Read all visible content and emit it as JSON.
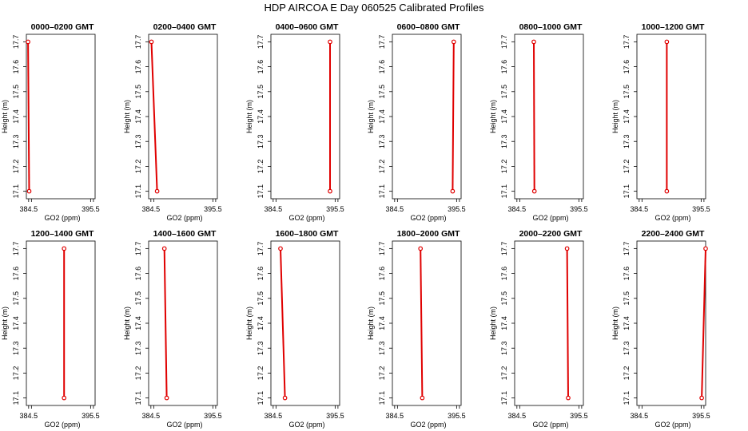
{
  "figure": {
    "title": "HDP  AIRCOA E  Day 060525  Calibrated Profiles"
  },
  "colors": {
    "series": "#e00000",
    "axis": "#000000"
  },
  "chart_data": [
    {
      "type": "line",
      "title": "0000–0200 GMT",
      "xlabel": "GO2 (ppm)",
      "ylabel": "Height (m)",
      "xlim": [
        384.1,
        396.3
      ],
      "ylim": [
        17.07,
        17.73
      ],
      "xticks": [
        384.5,
        395.5
      ],
      "yticks": [
        17.1,
        17.2,
        17.3,
        17.4,
        17.5,
        17.6,
        17.7
      ],
      "series": [
        {
          "name": "profile",
          "x": [
            384.4,
            384.6
          ],
          "y": [
            17.7,
            17.1
          ]
        }
      ]
    },
    {
      "type": "line",
      "title": "0200–0400 GMT",
      "xlabel": "GO2 (ppm)",
      "ylabel": "Height (m)",
      "xlim": [
        384.1,
        396.3
      ],
      "ylim": [
        17.07,
        17.73
      ],
      "xticks": [
        384.5,
        395.5
      ],
      "yticks": [
        17.1,
        17.2,
        17.3,
        17.4,
        17.5,
        17.6,
        17.7
      ],
      "series": [
        {
          "name": "profile",
          "x": [
            384.6,
            385.6
          ],
          "y": [
            17.7,
            17.1
          ]
        }
      ]
    },
    {
      "type": "line",
      "title": "0400–0600 GMT",
      "xlabel": "GO2 (ppm)",
      "ylabel": "Height (m)",
      "xlim": [
        384.1,
        396.3
      ],
      "ylim": [
        17.07,
        17.73
      ],
      "xticks": [
        384.5,
        395.5
      ],
      "yticks": [
        17.1,
        17.2,
        17.3,
        17.4,
        17.5,
        17.6,
        17.7
      ],
      "series": [
        {
          "name": "profile",
          "x": [
            394.6,
            394.6
          ],
          "y": [
            17.7,
            17.1
          ]
        }
      ]
    },
    {
      "type": "line",
      "title": "0600–0800 GMT",
      "xlabel": "GO2 (ppm)",
      "ylabel": "Height (m)",
      "xlim": [
        384.1,
        396.3
      ],
      "ylim": [
        17.07,
        17.73
      ],
      "xticks": [
        384.5,
        395.5
      ],
      "yticks": [
        17.1,
        17.2,
        17.3,
        17.4,
        17.5,
        17.6,
        17.7
      ],
      "series": [
        {
          "name": "profile",
          "x": [
            395.0,
            394.8
          ],
          "y": [
            17.7,
            17.1
          ]
        }
      ]
    },
    {
      "type": "line",
      "title": "0800–1000 GMT",
      "xlabel": "GO2 (ppm)",
      "ylabel": "Height (m)",
      "xlim": [
        384.1,
        396.3
      ],
      "ylim": [
        17.07,
        17.73
      ],
      "xticks": [
        384.5,
        395.5
      ],
      "yticks": [
        17.1,
        17.2,
        17.3,
        17.4,
        17.5,
        17.6,
        17.7
      ],
      "series": [
        {
          "name": "profile",
          "x": [
            387.5,
            387.6
          ],
          "y": [
            17.7,
            17.1
          ]
        }
      ]
    },
    {
      "type": "line",
      "title": "1000–1200 GMT",
      "xlabel": "GO2 (ppm)",
      "ylabel": "Height (m)",
      "xlim": [
        384.1,
        396.3
      ],
      "ylim": [
        17.07,
        17.73
      ],
      "xticks": [
        384.5,
        395.5
      ],
      "yticks": [
        17.1,
        17.2,
        17.3,
        17.4,
        17.5,
        17.6,
        17.7
      ],
      "series": [
        {
          "name": "profile",
          "x": [
            389.4,
            389.4
          ],
          "y": [
            17.7,
            17.1
          ]
        }
      ]
    },
    {
      "type": "line",
      "title": "1200–1400 GMT",
      "xlabel": "GO2 (ppm)",
      "ylabel": "Height (m)",
      "xlim": [
        384.1,
        396.3
      ],
      "ylim": [
        17.07,
        17.73
      ],
      "xticks": [
        384.5,
        395.5
      ],
      "yticks": [
        17.1,
        17.2,
        17.3,
        17.4,
        17.5,
        17.6,
        17.7
      ],
      "series": [
        {
          "name": "profile",
          "x": [
            390.8,
            390.8
          ],
          "y": [
            17.7,
            17.1
          ]
        }
      ]
    },
    {
      "type": "line",
      "title": "1400–1600 GMT",
      "xlabel": "GO2 (ppm)",
      "ylabel": "Height (m)",
      "xlim": [
        384.1,
        396.3
      ],
      "ylim": [
        17.07,
        17.73
      ],
      "xticks": [
        384.5,
        395.5
      ],
      "yticks": [
        17.1,
        17.2,
        17.3,
        17.4,
        17.5,
        17.6,
        17.7
      ],
      "series": [
        {
          "name": "profile",
          "x": [
            386.9,
            387.3
          ],
          "y": [
            17.7,
            17.1
          ]
        }
      ]
    },
    {
      "type": "line",
      "title": "1600–1800 GMT",
      "xlabel": "GO2 (ppm)",
      "ylabel": "Height (m)",
      "xlim": [
        384.1,
        396.3
      ],
      "ylim": [
        17.07,
        17.73
      ],
      "xticks": [
        384.5,
        395.5
      ],
      "yticks": [
        17.1,
        17.2,
        17.3,
        17.4,
        17.5,
        17.6,
        17.7
      ],
      "series": [
        {
          "name": "profile",
          "x": [
            385.8,
            386.6
          ],
          "y": [
            17.7,
            17.1
          ]
        }
      ]
    },
    {
      "type": "line",
      "title": "1800–2000 GMT",
      "xlabel": "GO2 (ppm)",
      "ylabel": "Height (m)",
      "xlim": [
        384.1,
        396.3
      ],
      "ylim": [
        17.07,
        17.73
      ],
      "xticks": [
        384.5,
        395.5
      ],
      "yticks": [
        17.1,
        17.2,
        17.3,
        17.4,
        17.5,
        17.6,
        17.7
      ],
      "series": [
        {
          "name": "profile",
          "x": [
            389.1,
            389.4
          ],
          "y": [
            17.7,
            17.1
          ]
        }
      ]
    },
    {
      "type": "line",
      "title": "2000–2200 GMT",
      "xlabel": "GO2 (ppm)",
      "ylabel": "Height (m)",
      "xlim": [
        384.1,
        396.3
      ],
      "ylim": [
        17.07,
        17.73
      ],
      "xticks": [
        384.5,
        395.5
      ],
      "yticks": [
        17.1,
        17.2,
        17.3,
        17.4,
        17.5,
        17.6,
        17.7
      ],
      "series": [
        {
          "name": "profile",
          "x": [
            393.4,
            393.6
          ],
          "y": [
            17.7,
            17.1
          ]
        }
      ]
    },
    {
      "type": "line",
      "title": "2200–2400 GMT",
      "xlabel": "GO2 (ppm)",
      "ylabel": "Height (m)",
      "xlim": [
        384.1,
        396.3
      ],
      "ylim": [
        17.07,
        17.73
      ],
      "xticks": [
        384.5,
        395.5
      ],
      "yticks": [
        17.1,
        17.2,
        17.3,
        17.4,
        17.5,
        17.6,
        17.7
      ],
      "series": [
        {
          "name": "profile",
          "x": [
            396.3,
            395.6
          ],
          "y": [
            17.7,
            17.1
          ]
        }
      ]
    }
  ]
}
